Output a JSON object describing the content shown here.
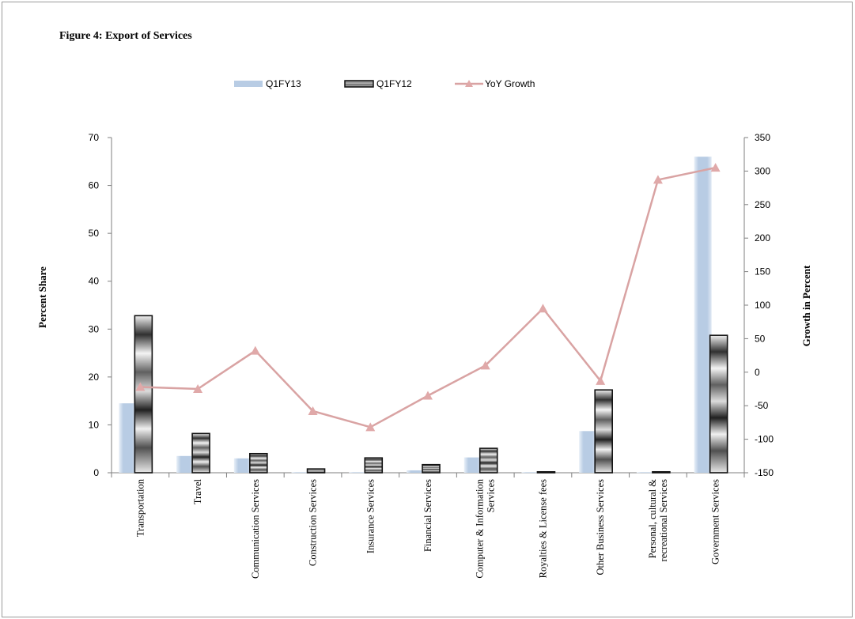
{
  "figure_title": "Figure 4: Export of Services",
  "colors": {
    "q1fy13": "#b8cce4",
    "q1fy12_edge": "#111111",
    "growth_line": "#d9a3a3",
    "growth_marker": "#e0a9a9"
  },
  "chart_data": {
    "type": "bar",
    "title": "",
    "categories": [
      "Transportation",
      "Travel",
      "Communication Services",
      "Construction Services",
      "Insurance Services",
      "Financial Services",
      "Computer & Information Services",
      "Royalties & License fees",
      "Other Business Services",
      "Personal, cultural & recreational Services",
      "Government Services"
    ],
    "category_lines": [
      [
        "Transportation"
      ],
      [
        "Travel"
      ],
      [
        "Communication Services"
      ],
      [
        "Construction Services"
      ],
      [
        "Insurance Services"
      ],
      [
        "Financial Services"
      ],
      [
        "Computer & Information",
        "Services"
      ],
      [
        "Royalties & License fees"
      ],
      [
        "Other Business Services"
      ],
      [
        "Personal, cultural &",
        "recreational Services"
      ],
      [
        "Government Services"
      ]
    ],
    "series": [
      {
        "name": "Q1FY13",
        "axis": "left",
        "kind": "bar",
        "values": [
          14.5,
          3.5,
          3.0,
          0.1,
          0.1,
          0.5,
          3.2,
          0.1,
          8.7,
          0.1,
          66.0
        ]
      },
      {
        "name": "Q1FY12",
        "axis": "left",
        "kind": "bar",
        "values": [
          32.8,
          8.2,
          4.0,
          0.8,
          3.1,
          1.7,
          5.1,
          0.2,
          17.3,
          0.2,
          28.7
        ]
      },
      {
        "name": "YoY Growth",
        "axis": "right",
        "kind": "line",
        "values": [
          -22,
          -25,
          32,
          -58,
          -82,
          -35,
          10,
          95,
          -13,
          287,
          305
        ]
      }
    ],
    "ylabel": "Percent Share",
    "y2label": "Growth in Percent",
    "ylim": [
      0,
      70
    ],
    "yticks": [
      0,
      10,
      20,
      30,
      40,
      50,
      60,
      70
    ],
    "y2lim": [
      -150,
      350
    ],
    "y2ticks": [
      -150,
      -100,
      -50,
      0,
      50,
      100,
      150,
      200,
      250,
      300,
      350
    ],
    "grid": false,
    "legend": "top-center"
  }
}
